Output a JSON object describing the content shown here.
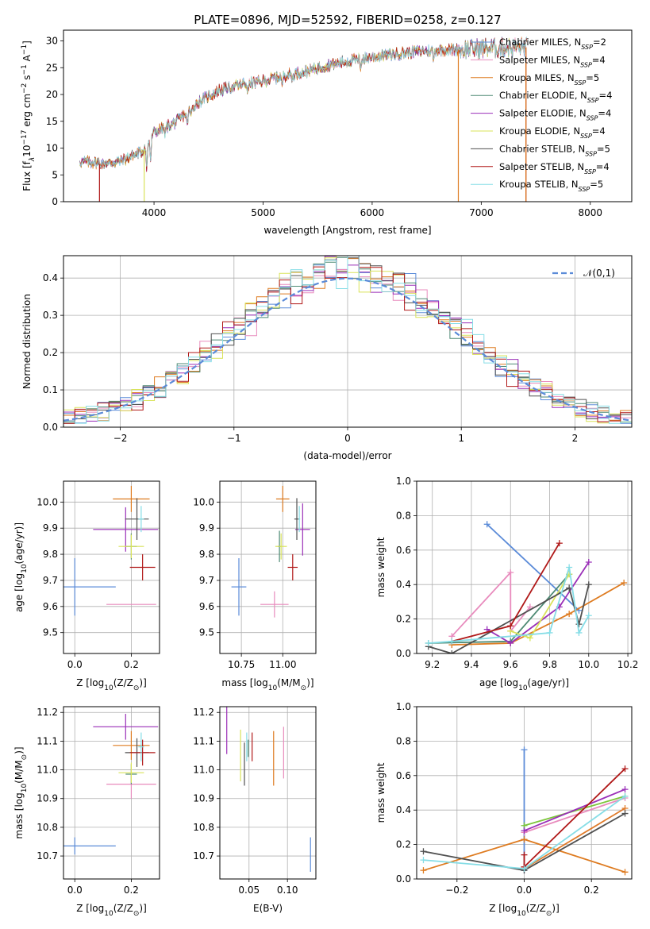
{
  "title": "PLATE=0896, MJD=52592, FIBERID=0258, z=0.127",
  "colors": {
    "Chabrier MILES": "#5b8bd8",
    "Salpeter MILES": "#e88bbd",
    "Kroupa MILES": "#de7b20",
    "Chabrier ELODIE": "#4e8a74",
    "Salpeter ELODIE": "#9a2fb8",
    "Kroupa ELODIE": "#d9e35a",
    "Chabrier STELIB": "#505050",
    "Salpeter STELIB": "#b01818",
    "Kroupa STELIB": "#86dde6",
    "Kroupa MILES SSP": "#e07b2a",
    "Kroupa ELODIE SSP": "#7cc63a"
  },
  "legend_spectrum": [
    {
      "model": "Chabrier MILES",
      "label": "Chabrier MILES, N",
      "sub": "SSP",
      "suffix": "=2"
    },
    {
      "model": "Salpeter MILES",
      "label": "Salpeter MILES, N",
      "sub": "SSP",
      "suffix": "=4"
    },
    {
      "model": "Kroupa MILES",
      "label": "Kroupa MILES, N",
      "sub": "SSP",
      "suffix": "=5"
    },
    {
      "model": "Chabrier ELODIE",
      "label": "Chabrier ELODIE, N",
      "sub": "SSP",
      "suffix": "=4"
    },
    {
      "model": "Salpeter ELODIE",
      "label": "Salpeter ELODIE, N",
      "sub": "SSP",
      "suffix": "=4"
    },
    {
      "model": "Kroupa ELODIE",
      "label": "Kroupa ELODIE, N",
      "sub": "SSP",
      "suffix": "=4"
    },
    {
      "model": "Chabrier STELIB",
      "label": "Chabrier STELIB, N",
      "sub": "SSP",
      "suffix": "=5"
    },
    {
      "model": "Salpeter STELIB",
      "label": "Salpeter STELIB, N",
      "sub": "SSP",
      "suffix": "=4"
    },
    {
      "model": "Kroupa STELIB",
      "label": "Kroupa STELIB, N",
      "sub": "SSP",
      "suffix": "=5"
    }
  ],
  "chart_data": [
    {
      "id": "spectrum",
      "type": "line",
      "xlabel": "wavelength [Angstrom, rest frame]",
      "ylabel_parts": [
        "Flux [f",
        "λ",
        "10",
        "−17",
        " erg cm",
        "−2",
        " s",
        "−1",
        " A",
        "−1",
        "]"
      ],
      "xlim": [
        3170,
        8380
      ],
      "ylim": [
        0,
        32
      ],
      "xticks": [
        4000,
        5000,
        6000,
        7000,
        8000
      ],
      "yticks": [
        0,
        5,
        10,
        15,
        20,
        25,
        30
      ],
      "continuum": [
        [
          3320,
          7.2
        ],
        [
          3500,
          7.0
        ],
        [
          3700,
          7.6
        ],
        [
          3900,
          9.5
        ],
        [
          4000,
          13.0
        ],
        [
          4200,
          14.8
        ],
        [
          4400,
          18.5
        ],
        [
          4600,
          20.8
        ],
        [
          4800,
          21.8
        ],
        [
          5000,
          22.5
        ],
        [
          5200,
          23.6
        ],
        [
          5400,
          24.3
        ],
        [
          5600,
          25.5
        ],
        [
          5800,
          26.3
        ],
        [
          6000,
          27.0
        ],
        [
          6200,
          27.5
        ],
        [
          6400,
          28.0
        ],
        [
          6600,
          28.3
        ],
        [
          6800,
          28.4
        ],
        [
          7000,
          28.6
        ],
        [
          7200,
          28.7
        ],
        [
          7400,
          28.8
        ]
      ],
      "absorption_lines": [
        [
          3934,
          4.5
        ],
        [
          3969,
          4.0
        ],
        [
          4102,
          1.5
        ],
        [
          4304,
          2.5
        ],
        [
          4341,
          1.5
        ],
        [
          4861,
          1.5
        ],
        [
          5175,
          2.0
        ],
        [
          5270,
          1.0
        ],
        [
          5892,
          1.5
        ],
        [
          6563,
          1.5
        ]
      ],
      "dropouts": [
        {
          "model": "Salpeter STELIB",
          "x": 3500
        },
        {
          "model": "Kroupa ELODIE",
          "x": 3910
        },
        {
          "model": "Kroupa MILES",
          "x": 6790
        },
        {
          "model": "Salpeter STELIB",
          "x": 7410
        },
        {
          "model": "Kroupa MILES",
          "x": 7410
        }
      ]
    },
    {
      "id": "residuals",
      "type": "histogram",
      "xlabel": "(data-model)/error",
      "ylabel": "Normed distribution",
      "xlim": [
        -2.5,
        2.5
      ],
      "ylim": [
        0,
        0.46
      ],
      "xticks": [
        -2,
        -1,
        0,
        1,
        2
      ],
      "yticks": [
        0.0,
        0.1,
        0.2,
        0.3,
        0.4
      ],
      "bin_width": 0.1,
      "reference": {
        "label": "𝒩(0,1)",
        "mean": 0,
        "sigma": 1,
        "color": "#5b8bd8"
      }
    },
    {
      "id": "age_vs_Z",
      "type": "scatter",
      "xlabel": "Z [log10(Z/Z⊙)]",
      "ylabel": "age  [log10(age/yr)]",
      "xlim": [
        -0.04,
        0.3
      ],
      "ylim": [
        9.42,
        10.08
      ],
      "xticks": [
        0.0,
        0.2
      ],
      "yticks": [
        9.5,
        9.6,
        9.7,
        9.8,
        9.9,
        10.0
      ],
      "points": [
        {
          "model": "Chabrier MILES",
          "x": 0.0,
          "xerr": 0.145,
          "y": 9.675,
          "yerr": 0.11
        },
        {
          "model": "Salpeter MILES",
          "x": 0.2,
          "xerr": 0.088,
          "y": 9.608,
          "yerr": 0.0
        },
        {
          "model": "Kroupa MILES",
          "x": 0.2,
          "xerr": 0.065,
          "y": 10.012,
          "yerr": 0.05
        },
        {
          "model": "Chabrier ELODIE",
          "x": 0.2,
          "xerr": 0.02,
          "y": 9.83,
          "yerr": 0.05
        },
        {
          "model": "Salpeter ELODIE",
          "x": 0.18,
          "xerr": 0.115,
          "y": 9.895,
          "yerr": 0.085
        },
        {
          "model": "Kroupa ELODIE",
          "x": 0.2,
          "xerr": 0.045,
          "y": 9.83,
          "yerr": 0.045
        },
        {
          "model": "Chabrier STELIB",
          "x": 0.22,
          "xerr": 0.042,
          "y": 9.935,
          "yerr": 0.08
        },
        {
          "model": "Salpeter STELIB",
          "x": 0.24,
          "xerr": 0.045,
          "y": 9.75,
          "yerr": 0.05
        },
        {
          "model": "Kroupa STELIB",
          "x": 0.235,
          "xerr": 0.01,
          "y": 9.935,
          "yerr": 0.05
        }
      ]
    },
    {
      "id": "age_vs_mass",
      "type": "scatter",
      "xlabel": "mass [log10(M/M⊙)]",
      "ylabel": "",
      "xlim": [
        10.62,
        11.2
      ],
      "ylim": [
        9.42,
        10.08
      ],
      "xticks": [
        10.75,
        11.0
      ],
      "yticks": [
        9.5,
        9.6,
        9.7,
        9.8,
        9.9,
        10.0
      ],
      "points": [
        {
          "model": "Chabrier MILES",
          "x": 10.735,
          "xerr": 0.045,
          "y": 9.675,
          "yerr": 0.11
        },
        {
          "model": "Salpeter MILES",
          "x": 10.95,
          "xerr": 0.085,
          "y": 9.608,
          "yerr": 0.05
        },
        {
          "model": "Kroupa MILES",
          "x": 11.0,
          "xerr": 0.04,
          "y": 10.012,
          "yerr": 0.05
        },
        {
          "model": "Chabrier ELODIE",
          "x": 10.98,
          "xerr": 0.01,
          "y": 9.83,
          "yerr": 0.06
        },
        {
          "model": "Salpeter ELODIE",
          "x": 11.12,
          "xerr": 0.045,
          "y": 9.895,
          "yerr": 0.1
        },
        {
          "model": "Kroupa ELODIE",
          "x": 10.99,
          "xerr": 0.035,
          "y": 9.83,
          "yerr": 0.05
        },
        {
          "model": "Chabrier STELIB",
          "x": 11.085,
          "xerr": 0.015,
          "y": 9.935,
          "yerr": 0.08
        },
        {
          "model": "Salpeter STELIB",
          "x": 11.06,
          "xerr": 0.03,
          "y": 9.75,
          "yerr": 0.05
        },
        {
          "model": "Kroupa STELIB",
          "x": 11.1,
          "xerr": 0.005,
          "y": 9.935,
          "yerr": 0.05
        }
      ]
    },
    {
      "id": "weight_vs_age",
      "type": "line",
      "xlabel": "age  [log10(age/yr)]",
      "ylabel": "mass weight",
      "xlim": [
        9.12,
        10.22
      ],
      "ylim": [
        0,
        1
      ],
      "xticks": [
        9.2,
        9.4,
        9.6,
        9.8,
        10.0,
        10.2
      ],
      "yticks": [
        0.0,
        0.2,
        0.4,
        0.6,
        0.8,
        1.0
      ],
      "series": [
        {
          "model": "Chabrier MILES",
          "x": [
            9.48,
            9.95
          ],
          "y": [
            0.75,
            0.25
          ]
        },
        {
          "model": "Salpeter MILES",
          "x": [
            9.3,
            9.6,
            9.6,
            9.7
          ],
          "y": [
            0.1,
            0.47,
            0.13,
            0.27
          ]
        },
        {
          "model": "Kroupa MILES",
          "x": [
            9.3,
            9.6,
            9.9,
            10.18
          ],
          "y": [
            0.05,
            0.06,
            0.23,
            0.41
          ]
        },
        {
          "model": "Chabrier ELODIE",
          "x": [
            9.18,
            9.6,
            9.9
          ],
          "y": [
            0.06,
            0.07,
            0.46
          ]
        },
        {
          "model": "Salpeter ELODIE",
          "x": [
            9.48,
            9.6,
            9.85,
            10.0
          ],
          "y": [
            0.14,
            0.06,
            0.27,
            0.53
          ]
        },
        {
          "model": "Kroupa ELODIE",
          "x": [
            9.6,
            9.7,
            9.9
          ],
          "y": [
            0.13,
            0.09,
            0.46
          ]
        },
        {
          "model": "Chabrier STELIB",
          "x": [
            9.18,
            9.3,
            9.9,
            9.95,
            10.0
          ],
          "y": [
            0.04,
            0.0,
            0.38,
            0.17,
            0.4
          ]
        },
        {
          "model": "Salpeter STELIB",
          "x": [
            9.3,
            9.6,
            9.85
          ],
          "y": [
            0.07,
            0.16,
            0.64
          ]
        },
        {
          "model": "Kroupa STELIB",
          "x": [
            9.18,
            9.3,
            9.8,
            9.9,
            9.95,
            10.0
          ],
          "y": [
            0.06,
            0.07,
            0.12,
            0.5,
            0.12,
            0.22
          ]
        }
      ]
    },
    {
      "id": "mass_vs_Z",
      "type": "scatter",
      "xlabel": "Z [log10(Z/Z⊙)]",
      "ylabel": "mass [log10(M/M⊙)]",
      "xlim": [
        -0.04,
        0.3
      ],
      "ylim": [
        10.62,
        11.22
      ],
      "xticks": [
        0.0,
        0.2
      ],
      "yticks": [
        10.7,
        10.8,
        10.9,
        11.0,
        11.1,
        11.2
      ],
      "points": [
        {
          "model": "Chabrier MILES",
          "x": 0.0,
          "xerr": 0.145,
          "y": 10.735,
          "yerr": 0.03
        },
        {
          "model": "Salpeter MILES",
          "x": 0.2,
          "xerr": 0.088,
          "y": 10.95,
          "yerr": 0.05
        },
        {
          "model": "Kroupa MILES",
          "x": 0.2,
          "xerr": 0.065,
          "y": 11.085,
          "yerr": 0.05
        },
        {
          "model": "Chabrier ELODIE",
          "x": 0.2,
          "xerr": 0.02,
          "y": 10.985,
          "yerr": 0.035
        },
        {
          "model": "Salpeter ELODIE",
          "x": 0.18,
          "xerr": 0.115,
          "y": 11.15,
          "yerr": 0.045
        },
        {
          "model": "Kroupa ELODIE",
          "x": 0.2,
          "xerr": 0.045,
          "y": 10.99,
          "yerr": 0.035
        },
        {
          "model": "Chabrier STELIB",
          "x": 0.22,
          "xerr": 0.042,
          "y": 11.06,
          "yerr": 0.05
        },
        {
          "model": "Salpeter STELIB",
          "x": 0.24,
          "xerr": 0.045,
          "y": 11.06,
          "yerr": 0.045
        },
        {
          "model": "Kroupa STELIB",
          "x": 0.235,
          "xerr": 0.01,
          "y": 11.08,
          "yerr": 0.05
        }
      ]
    },
    {
      "id": "mass_vs_ebv",
      "type": "scatter",
      "xlabel": "E(B-V)",
      "ylabel": "",
      "xlim": [
        0.012,
        0.137
      ],
      "ylim": [
        10.62,
        11.22
      ],
      "xticks": [
        0.05,
        0.1
      ],
      "yticks": [
        10.7,
        10.8,
        10.9,
        11.0,
        11.1,
        11.2
      ],
      "points": [
        {
          "model": "Chabrier MILES",
          "x": 0.13,
          "xerr": 0.0,
          "y": 10.705,
          "yerr": 0.06
        },
        {
          "model": "Salpeter MILES",
          "x": 0.095,
          "xerr": 0.0,
          "y": 11.06,
          "yerr": 0.09
        },
        {
          "model": "Kroupa MILES",
          "x": 0.082,
          "xerr": 0.0,
          "y": 11.04,
          "yerr": 0.095
        },
        {
          "model": "Chabrier ELODIE",
          "x": 0.049,
          "xerr": 0.0,
          "y": 11.075,
          "yerr": 0.03
        },
        {
          "model": "Salpeter ELODIE",
          "x": 0.021,
          "xerr": 0.0,
          "y": 11.17,
          "yerr": 0.115
        },
        {
          "model": "Kroupa ELODIE",
          "x": 0.039,
          "xerr": 0.0,
          "y": 11.05,
          "yerr": 0.09
        },
        {
          "model": "Chabrier STELIB",
          "x": 0.044,
          "xerr": 0.0,
          "y": 11.02,
          "yerr": 0.075
        },
        {
          "model": "Salpeter STELIB",
          "x": 0.054,
          "xerr": 0.0,
          "y": 11.08,
          "yerr": 0.05
        },
        {
          "model": "Kroupa STELIB",
          "x": 0.047,
          "xerr": 0.0,
          "y": 11.08,
          "yerr": 0.05
        }
      ]
    },
    {
      "id": "weight_vs_Z",
      "type": "line",
      "xlabel": "Z [log10(Z/Z⊙)]",
      "ylabel": "mass weight",
      "xlim": [
        -0.32,
        0.32
      ],
      "ylim": [
        0,
        1
      ],
      "xticks": [
        -0.2,
        0.0,
        0.2
      ],
      "yticks": [
        0.0,
        0.2,
        0.4,
        0.6,
        0.8,
        1.0
      ],
      "series": [
        {
          "model": "Chabrier MILES",
          "x": [
            0.0,
            0.0
          ],
          "y": [
            0.75,
            0.05
          ]
        },
        {
          "model": "Salpeter MILES",
          "x": [
            0.0,
            0.3
          ],
          "y": [
            0.27,
            0.47
          ]
        },
        {
          "model": "Kroupa MILES",
          "x": [
            -0.3,
            0.0,
            0.3
          ],
          "y": [
            0.05,
            0.23,
            0.04
          ]
        },
        {
          "model": "Kroupa MILES SSP",
          "x": [
            0.0,
            0.3
          ],
          "y": [
            0.06,
            0.41
          ]
        },
        {
          "model": "Kroupa ELODIE SSP",
          "x": [
            0.0,
            0.3
          ],
          "y": [
            0.31,
            0.48
          ]
        },
        {
          "model": "Salpeter ELODIE",
          "x": [
            0.0,
            0.3
          ],
          "y": [
            0.28,
            0.52
          ]
        },
        {
          "model": "Chabrier STELIB",
          "x": [
            -0.3,
            0.0,
            0.3
          ],
          "y": [
            0.16,
            0.05,
            0.38
          ]
        },
        {
          "model": "Salpeter STELIB",
          "x": [
            0.0,
            0.0,
            0.3
          ],
          "y": [
            0.14,
            0.07,
            0.64
          ]
        },
        {
          "model": "Kroupa STELIB",
          "x": [
            -0.3,
            0.0,
            0.3
          ],
          "y": [
            0.11,
            0.06,
            0.48
          ]
        }
      ]
    }
  ]
}
